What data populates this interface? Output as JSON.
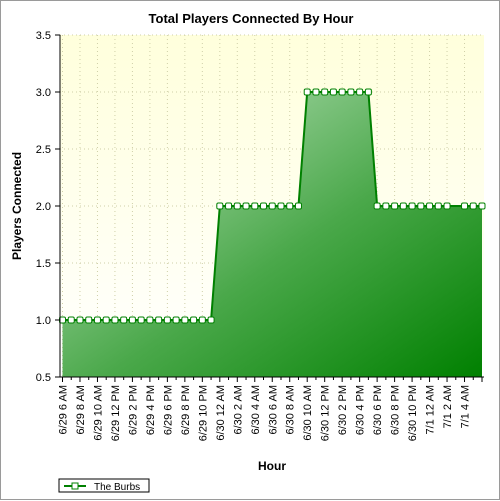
{
  "chart_data": {
    "type": "area",
    "title": "Total Players Connected By Hour",
    "xlabel": "Hour",
    "ylabel": "Players Connected",
    "ylim": [
      0.5,
      3.5
    ],
    "yticks": [
      0.5,
      1.0,
      1.5,
      2.0,
      2.5,
      3.0,
      3.5
    ],
    "ytick_labels": [
      "0.5",
      "1.0",
      "1.5",
      "2.0",
      "2.5",
      "3.0",
      "3.5"
    ],
    "x_tick_labels": [
      "6/29 6 AM",
      "6/29 8 AM",
      "6/29 10 AM",
      "6/29 12 PM",
      "6/29 2 PM",
      "6/29 4 PM",
      "6/29 6 PM",
      "6/29 8 PM",
      "6/29 10 PM",
      "6/30 12 AM",
      "6/30 2 AM",
      "6/30 4 AM",
      "6/30 6 AM",
      "6/30 8 AM",
      "6/30 10 AM",
      "6/30 12 PM",
      "6/30 2 PM",
      "6/30 4 PM",
      "6/30 6 PM",
      "6/30 8 PM",
      "6/30 10 PM",
      "7/1 12 AM",
      "7/1 2 AM",
      "7/1 4 AM"
    ],
    "grid": true,
    "legend_position": "bottom-left",
    "series": [
      {
        "name": "The Burbs",
        "color": "#008000",
        "values": [
          1,
          1,
          1,
          1,
          1,
          1,
          1,
          1,
          1,
          1,
          1,
          1,
          1,
          1,
          1,
          1,
          1,
          1,
          2,
          2,
          2,
          2,
          2,
          2,
          2,
          2,
          2,
          2,
          3,
          3,
          3,
          3,
          3,
          3,
          3,
          3,
          2,
          2,
          2,
          2,
          2,
          2,
          2,
          2,
          2,
          null,
          2,
          2,
          2
        ]
      }
    ]
  }
}
